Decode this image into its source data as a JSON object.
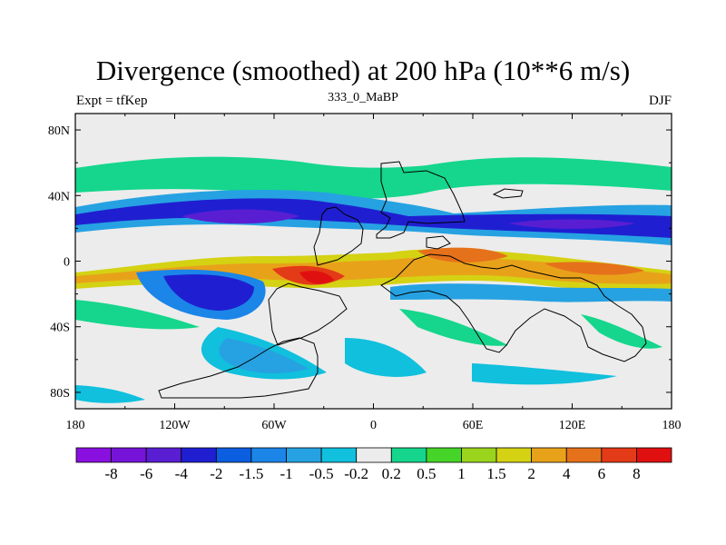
{
  "title": "Divergence (smoothed) at 200 hPa (10**6 m/s)",
  "left_label": "Expt = tfKep",
  "center_label": "333_0_MaBP",
  "right_label": "DJF",
  "x_ticks": [
    "180",
    "120W",
    "60W",
    "0",
    "60E",
    "120E",
    "180"
  ],
  "y_ticks": [
    "80N",
    "40N",
    "0",
    "40S",
    "80S"
  ],
  "colorbar": {
    "colors": [
      "#8a10e0",
      "#7514d8",
      "#5a1ed2",
      "#1f1fd1",
      "#0b5ee0",
      "#1b85e8",
      "#26a2e2",
      "#10c0dd",
      "#ececec",
      "#15d68c",
      "#46d428",
      "#9ad41c",
      "#d4d213",
      "#e8a21a",
      "#e6711b",
      "#e33a18",
      "#e01010"
    ],
    "labels": [
      "-8",
      "-6",
      "-4",
      "-2",
      "-1.5",
      "-1",
      "-0.5",
      "-0.2",
      "0.2",
      "0.5",
      "1",
      "1.5",
      "2",
      "4",
      "6",
      "8"
    ]
  }
}
